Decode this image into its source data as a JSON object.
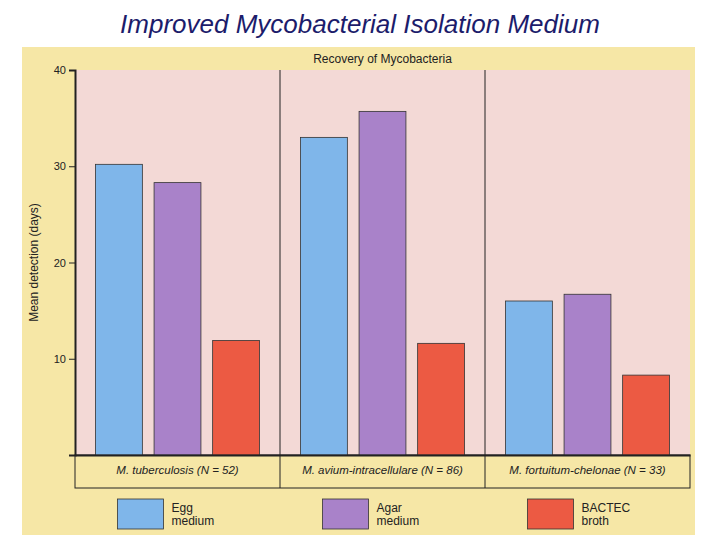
{
  "chart_data": {
    "type": "bar",
    "title": "Improved Mycobacterial Isolation Medium",
    "subtitle": "Recovery of Mycobacteria",
    "y_label": "Mean detection (days)",
    "categories": [
      "M. tuberculosis (N = 52)",
      "M. avium-intracellulare (N = 86)",
      "M. fortuitum-chelonae (N = 33)"
    ],
    "series": [
      {
        "name": "Egg medium",
        "color": "#7fb6ea",
        "values": [
          30.2,
          33.0,
          16.0
        ]
      },
      {
        "name": "Agar medium",
        "color": "#a982c9",
        "values": [
          28.3,
          35.7,
          16.7
        ]
      },
      {
        "name": "BACTEC broth",
        "color": "#ec5a43",
        "values": [
          11.9,
          11.6,
          8.3
        ]
      }
    ],
    "ylim": [
      0,
      40
    ],
    "yticks": [
      10,
      20,
      30,
      40
    ],
    "grid": false,
    "legend": "bottom",
    "data_labels": false
  }
}
